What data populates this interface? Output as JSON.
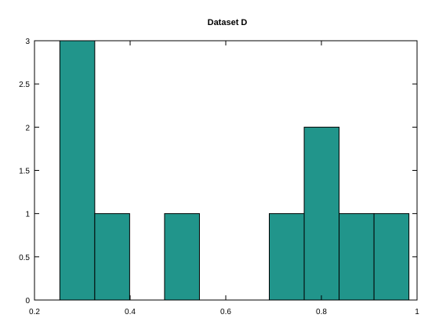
{
  "chart_data": {
    "type": "bar",
    "title": "Dataset D",
    "xlabel": "",
    "ylabel": "",
    "xlim": [
      0.2,
      1.0
    ],
    "ylim": [
      0,
      3
    ],
    "xticks": [
      "0.2",
      "0.4",
      "0.6",
      "0.8",
      "1"
    ],
    "yticks": [
      "0",
      "0.5",
      "1",
      "1.5",
      "2",
      "2.5",
      "3"
    ],
    "grid": false,
    "legend": "none",
    "bin_edges": [
      0.253,
      0.326,
      0.399,
      0.472,
      0.545,
      0.618,
      0.691,
      0.764,
      0.837,
      0.91,
      0.983
    ],
    "values": [
      3,
      1,
      0,
      1,
      0,
      0,
      1,
      2,
      1,
      1
    ],
    "colors": {
      "bar_fill": "#21958b",
      "bar_stroke": "#000000",
      "axis": "#000000"
    }
  }
}
